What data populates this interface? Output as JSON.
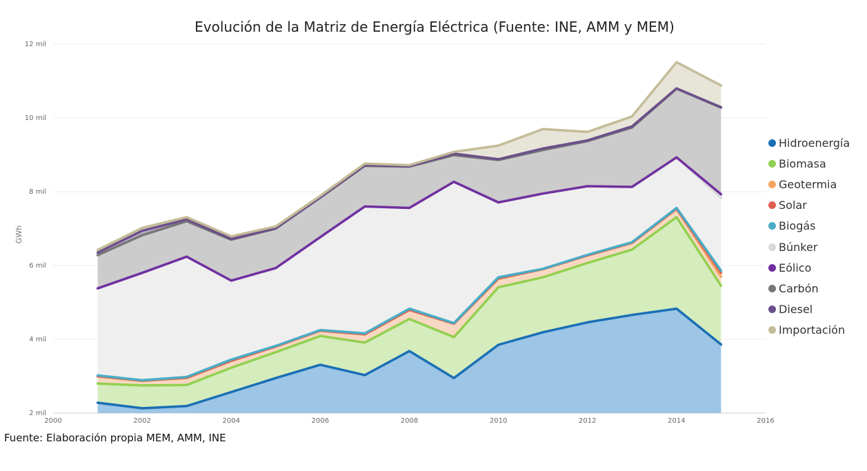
{
  "chart_data": {
    "type": "area",
    "stacked": true,
    "title": "Evolución de la Matriz de Energía Eléctrica (Fuente: INE, AMM y MEM)",
    "ylabel": "GWh",
    "xlabel": "",
    "xlim": [
      2000,
      2016
    ],
    "ylim": [
      2000,
      12000
    ],
    "x_ticks": [
      2000,
      2002,
      2004,
      2006,
      2008,
      2010,
      2012,
      2014,
      2016
    ],
    "y_ticks": [
      {
        "value": 2000,
        "label": "2 mil"
      },
      {
        "value": 4000,
        "label": "4 mil"
      },
      {
        "value": 6000,
        "label": "6 mil"
      },
      {
        "value": 8000,
        "label": "8 mil"
      },
      {
        "value": 10000,
        "label": "10 mil"
      },
      {
        "value": 12000,
        "label": "12 mil"
      }
    ],
    "grid": true,
    "legend_position": "right",
    "x": [
      2001,
      2002,
      2003,
      2004,
      2005,
      2006,
      2007,
      2008,
      2009,
      2010,
      2011,
      2012,
      2013,
      2014,
      2015
    ],
    "series": [
      {
        "name": "Hidroenergía",
        "line_color": "#1a6fb5",
        "fill_color": "#9cc5e6",
        "cumulative": [
          2280,
          2130,
          2190,
          2570,
          2950,
          3310,
          3030,
          3680,
          2950,
          3850,
          4190,
          4460,
          4660,
          4830,
          3860
        ]
      },
      {
        "name": "Biomasa",
        "line_color": "#92d050",
        "fill_color": "#d5ecbc",
        "cumulative": [
          2800,
          2750,
          2760,
          3230,
          3650,
          4090,
          3910,
          4550,
          4060,
          5410,
          5680,
          6070,
          6430,
          7310,
          5450
        ]
      },
      {
        "name": "Geotermia",
        "line_color": "#f4a460",
        "fill_color": "#f8d8c2",
        "cumulative": [
          2990,
          2870,
          2950,
          3410,
          3800,
          4230,
          4130,
          4790,
          4420,
          5640,
          5900,
          6270,
          6610,
          7530,
          5700
        ]
      },
      {
        "name": "Solar",
        "line_color": "#e06050",
        "fill_color": "#f0c0b8",
        "cumulative": [
          3000,
          2880,
          2960,
          3420,
          3805,
          4235,
          4135,
          4800,
          4425,
          5650,
          5905,
          6275,
          6615,
          7540,
          5800
        ]
      },
      {
        "name": "Biogás",
        "line_color": "#4aacc6",
        "fill_color": "#bfe2ec",
        "cumulative": [
          3020,
          2890,
          2980,
          3450,
          3820,
          4250,
          4160,
          4830,
          4440,
          5680,
          5910,
          6290,
          6630,
          7560,
          5860
        ]
      },
      {
        "name": "Búnker",
        "line_color": "#d8d8d8",
        "fill_color": "#efefef",
        "cumulative": [
          5380,
          5800,
          6240,
          5590,
          5930,
          6770,
          7600,
          7560,
          8270,
          7710,
          7950,
          8150,
          8130,
          8930,
          7840
        ]
      },
      {
        "name": "Eólico",
        "line_color": "#7030a0",
        "fill_color": "#c8a8de",
        "cumulative": [
          5380,
          5800,
          6240,
          5590,
          5930,
          6770,
          7600,
          7560,
          8270,
          7710,
          7950,
          8150,
          8130,
          8930,
          7930
        ]
      },
      {
        "name": "Carbón",
        "line_color": "#777777",
        "fill_color": "#cccccc",
        "cumulative": [
          6280,
          6820,
          7200,
          6700,
          7000,
          7840,
          8700,
          8680,
          8990,
          8860,
          9130,
          9370,
          9740,
          10790,
          10280
        ]
      },
      {
        "name": "Diesel",
        "line_color": "#6b4f8a",
        "fill_color": "#bdb0cd",
        "cumulative": [
          6350,
          6940,
          7250,
          6720,
          7010,
          7850,
          8720,
          8690,
          9030,
          8880,
          9170,
          9390,
          9770,
          10800,
          10290
        ]
      },
      {
        "name": "Importación",
        "line_color": "#c4bc98",
        "fill_color": "#e7e4d8",
        "cumulative": [
          6420,
          7020,
          7310,
          6790,
          7060,
          7890,
          8760,
          8720,
          9080,
          9250,
          9700,
          9620,
          10040,
          11510,
          10880
        ]
      }
    ]
  },
  "source_note": "Fuente: Elaboración propia MEM, AMM, INE"
}
